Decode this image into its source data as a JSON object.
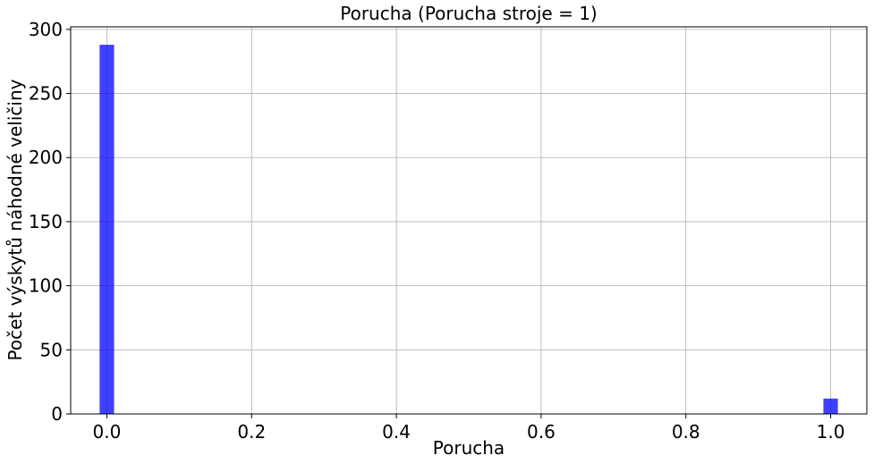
{
  "chart_data": {
    "type": "bar",
    "title": "Porucha (Porucha stroje = 1)",
    "xlabel": "Porucha",
    "ylabel": "Počet výskytů náhodné veličiny",
    "xlim": [
      -0.05,
      1.05
    ],
    "ylim": [
      0,
      302
    ],
    "xticks": [
      0.0,
      0.2,
      0.4,
      0.6,
      0.8,
      1.0
    ],
    "xtick_labels": [
      "0.0",
      "0.2",
      "0.4",
      "0.6",
      "0.8",
      "1.0"
    ],
    "yticks": [
      0,
      50,
      100,
      150,
      200,
      250,
      300
    ],
    "ytick_labels": [
      "0",
      "50",
      "100",
      "150",
      "200",
      "250",
      "300"
    ],
    "bin_width": 0.02,
    "bars": [
      {
        "x": 0.0,
        "value": 288
      },
      {
        "x": 1.0,
        "value": 12
      }
    ],
    "grid": true,
    "bar_color": "#0000ff",
    "bar_opacity": 0.75
  }
}
